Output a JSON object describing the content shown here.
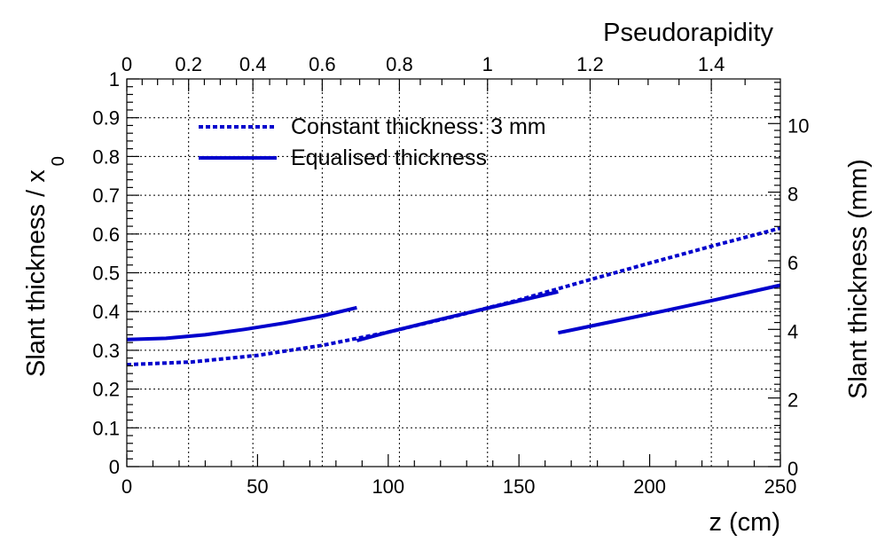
{
  "chart_data": {
    "type": "line",
    "xlabel": "z (cm)",
    "ylabel": "Slant thickness / x",
    "ylabel_subscript": "0",
    "y2label": "Slant thickness (mm)",
    "x2label": "Pseudorapidity",
    "xlim": [
      0,
      250
    ],
    "ylim": [
      0,
      1
    ],
    "y2lim": [
      0,
      11.3
    ],
    "x_ticks": [
      0,
      50,
      100,
      150,
      200,
      250
    ],
    "x_tick_labels": [
      "0",
      "50",
      "100",
      "150",
      "200",
      "250"
    ],
    "y_ticks": [
      0,
      0.1,
      0.2,
      0.3,
      0.4,
      0.5,
      0.6,
      0.7,
      0.8,
      0.9,
      1
    ],
    "y_tick_labels": [
      "0",
      "0.1",
      "0.2",
      "0.3",
      "0.4",
      "0.5",
      "0.6",
      "0.7",
      "0.8",
      "0.9",
      "1"
    ],
    "y2_ticks": [
      0,
      2,
      4,
      6,
      8,
      10
    ],
    "y2_tick_labels": [
      "0",
      "2",
      "4",
      "6",
      "8",
      "10"
    ],
    "eta_ticks": [
      0,
      0.2,
      0.4,
      0.6,
      0.8,
      1,
      1.2,
      1.4
    ],
    "eta_tick_labels": [
      "0",
      "0.2",
      "0.4",
      "0.6",
      "0.8",
      "1",
      "1.2",
      "1.4"
    ],
    "eta_minor": [
      0.05,
      0.1,
      0.15,
      0.25,
      0.3,
      0.35,
      0.45,
      0.5,
      0.55,
      0.65,
      0.7,
      0.75,
      0.85,
      0.9,
      0.95,
      1.05,
      1.1,
      1.15,
      1.25,
      1.3,
      1.35,
      1.45
    ],
    "grid": true,
    "legend_position": "top-left",
    "series": [
      {
        "name": "Constant thickness: 3 mm",
        "style": "dotted",
        "color": "#0000cc",
        "segments": [
          {
            "x": [
              0,
              25,
              50,
              75,
              100,
              125,
              150,
              175,
              200,
              225,
              250
            ],
            "y": [
              0.263,
              0.27,
              0.287,
              0.313,
              0.347,
              0.387,
              0.43,
              0.478,
              0.525,
              0.571,
              0.615
            ]
          }
        ]
      },
      {
        "name": "Equalised thickness",
        "style": "solid",
        "color": "#0000cc",
        "segments": [
          {
            "x": [
              0,
              15,
              30,
              45,
              60,
              75,
              88
            ],
            "y": [
              0.328,
              0.331,
              0.34,
              0.354,
              0.37,
              0.389,
              0.41
            ]
          },
          {
            "x": [
              88,
              100,
              120,
              140,
              165
            ],
            "y": [
              0.325,
              0.347,
              0.38,
              0.412,
              0.451
            ]
          },
          {
            "x": [
              165,
              185,
              205,
              225,
              250
            ],
            "y": [
              0.345,
              0.373,
              0.401,
              0.43,
              0.468
            ]
          }
        ]
      }
    ]
  }
}
